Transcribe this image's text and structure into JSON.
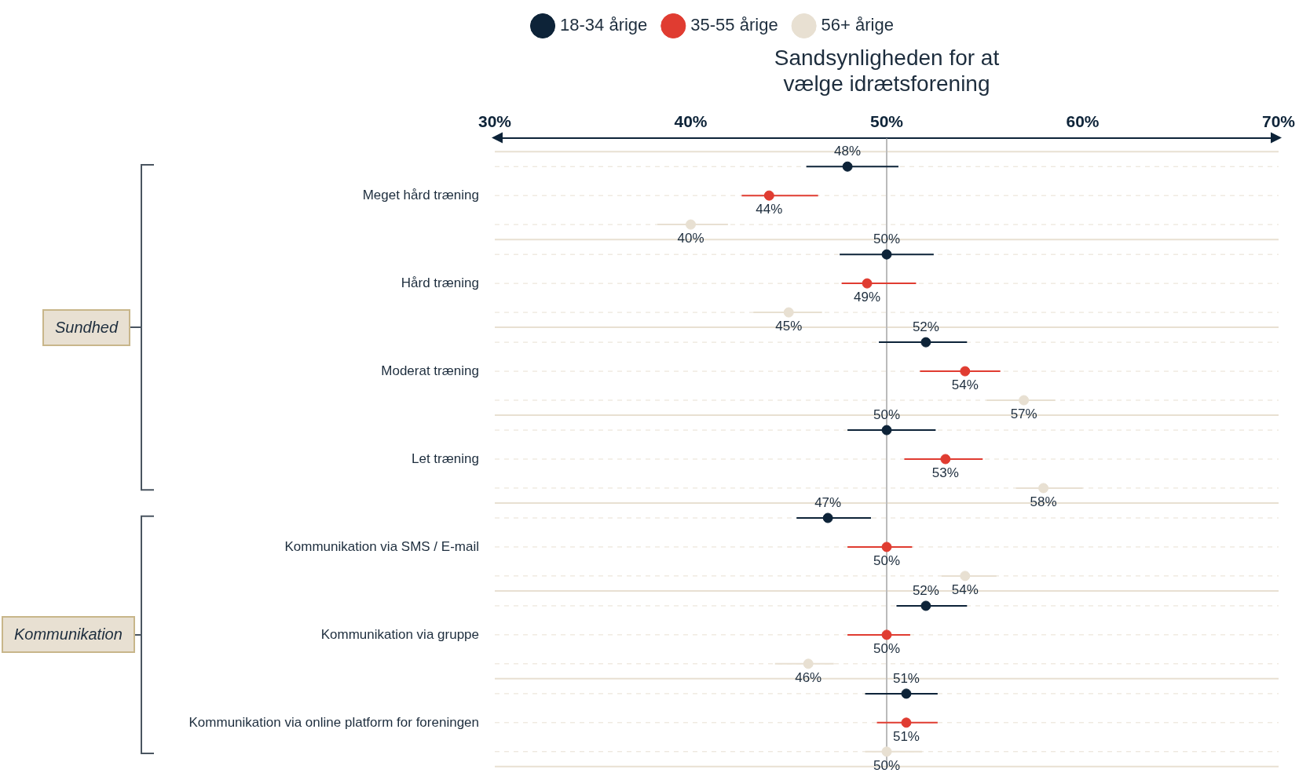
{
  "chart_data": {
    "type": "scatter",
    "orientation": "horizontal",
    "xlabel": "Sandsynligheden for at vælge idrætsforening",
    "categories": [
      "Meget hård træning",
      "Hård træning",
      "Moderat træning",
      "Let træning",
      "Kommunikation via SMS / E-mail",
      "Kommunikation via gruppe",
      "Kommunikation via online platform for foreningen"
    ],
    "series": [
      {
        "name": "18-34 årige",
        "color": "#0d2338",
        "values": [
          48,
          50,
          52,
          50,
          47,
          52,
          51
        ],
        "value_labels": [
          "48%",
          "50%",
          "52%",
          "50%",
          "47%",
          "52%",
          "51%"
        ],
        "errors": [
          [
            45.9,
            50.6
          ],
          [
            47.6,
            52.4
          ],
          [
            49.6,
            54.1
          ],
          [
            48.0,
            52.5
          ],
          [
            45.4,
            49.2
          ],
          [
            50.5,
            54.1
          ],
          [
            48.9,
            52.6
          ]
        ]
      },
      {
        "name": "35-55 årige",
        "color": "#e03c31",
        "values": [
          44,
          49,
          54,
          53,
          50,
          50,
          51
        ],
        "value_labels": [
          "44%",
          "49%",
          "54%",
          "53%",
          "50%",
          "50%",
          "51%"
        ],
        "errors": [
          [
            42.6,
            46.5
          ],
          [
            47.7,
            51.5
          ],
          [
            51.7,
            55.8
          ],
          [
            50.9,
            54.9
          ],
          [
            48.0,
            51.3
          ],
          [
            48.0,
            51.2
          ],
          [
            49.5,
            52.6
          ]
        ]
      },
      {
        "name": "56+ årige",
        "color": "#e8e0d2",
        "values": [
          40,
          45,
          57,
          58,
          54,
          46,
          50
        ],
        "value_labels": [
          "40%",
          "45%",
          "57%",
          "58%",
          "54%",
          "46%",
          "50%"
        ],
        "errors": [
          [
            38.3,
            41.9
          ],
          [
            43.2,
            46.7
          ],
          [
            55.1,
            58.6
          ],
          [
            56.6,
            60.0
          ],
          [
            52.8,
            55.6
          ],
          [
            44.3,
            47.3
          ],
          [
            48.9,
            51.8
          ]
        ]
      }
    ],
    "xlim": [
      30,
      70
    ],
    "xticks": [
      {
        "value": 30,
        "label": "30%"
      },
      {
        "value": 40,
        "label": "40%"
      },
      {
        "value": 50,
        "label": "50%"
      },
      {
        "value": 60,
        "label": "60%"
      },
      {
        "value": 70,
        "label": "70%"
      }
    ],
    "ref_lines": [
      {
        "axis": "x",
        "value": 50,
        "color": "#bbbbbb"
      }
    ],
    "annotations": [
      "Sundhed",
      "Kommunikation"
    ],
    "grid": "y",
    "legend": "top",
    "marker": "circle"
  }
}
